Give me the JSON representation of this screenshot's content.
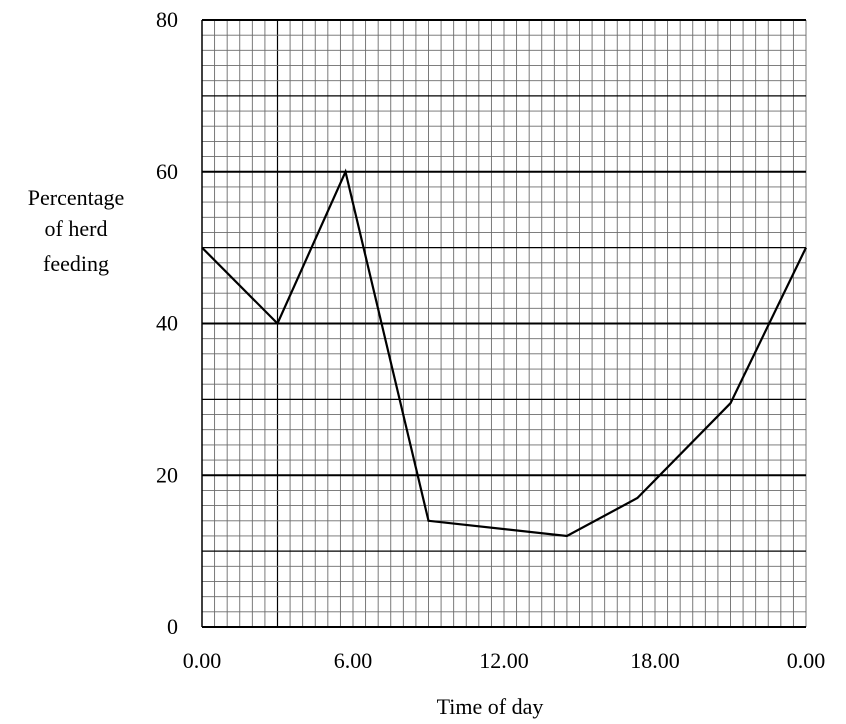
{
  "chart_data": {
    "type": "line",
    "title": "",
    "xlabel": "Time of day",
    "ylabel": [
      "Percentage",
      "of herd",
      "feeding"
    ],
    "x_tick_labels": [
      "0.00",
      "6.00",
      "12.00",
      "18.00",
      "0.00"
    ],
    "x_tick_hours": [
      0,
      6,
      12,
      18,
      24
    ],
    "y_tick_labels": [
      "0",
      "20",
      "40",
      "60",
      "80"
    ],
    "y_tick_values": [
      0,
      20,
      40,
      60,
      80
    ],
    "xlim": [
      0,
      24
    ],
    "ylim": [
      0,
      80
    ],
    "grid": true,
    "x": [
      0,
      3,
      5.7,
      9,
      14.5,
      17.3,
      21,
      24
    ],
    "y": [
      50,
      40,
      60,
      14,
      12,
      17,
      29.5,
      50
    ]
  }
}
